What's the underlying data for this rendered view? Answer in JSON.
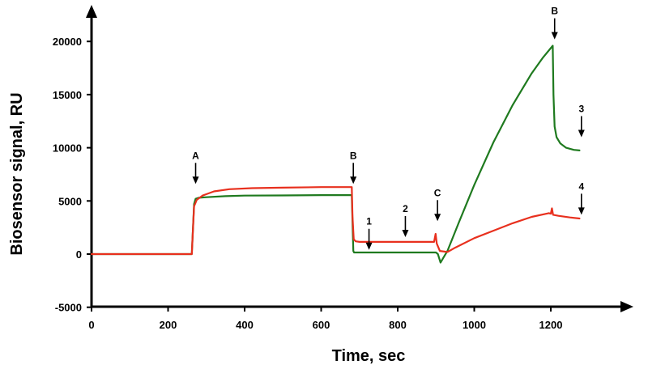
{
  "chart_data": {
    "type": "line",
    "title": "",
    "xlabel": "Time, sec",
    "ylabel": "Biosensor signal, RU",
    "xlim": [
      0,
      1400
    ],
    "ylim": [
      -5000,
      22500
    ],
    "x_ticks": [
      0,
      200,
      400,
      600,
      800,
      1000,
      1200
    ],
    "y_ticks": [
      -5000,
      0,
      5000,
      10000,
      15000,
      20000
    ],
    "grid": false,
    "series": [
      {
        "color": "#1f7a1f",
        "points": [
          [
            0,
            0
          ],
          [
            262,
            0
          ],
          [
            264,
            1500
          ],
          [
            268,
            4700
          ],
          [
            272,
            5200
          ],
          [
            280,
            5300
          ],
          [
            300,
            5350
          ],
          [
            350,
            5450
          ],
          [
            400,
            5500
          ],
          [
            500,
            5520
          ],
          [
            600,
            5550
          ],
          [
            680,
            5550
          ],
          [
            682,
            3000
          ],
          [
            684,
            300
          ],
          [
            686,
            150
          ],
          [
            700,
            150
          ],
          [
            800,
            150
          ],
          [
            900,
            150
          ],
          [
            905,
            0
          ],
          [
            912,
            -800
          ],
          [
            920,
            -300
          ],
          [
            930,
            300
          ],
          [
            960,
            3000
          ],
          [
            1000,
            6500
          ],
          [
            1050,
            10500
          ],
          [
            1100,
            14000
          ],
          [
            1150,
            17000
          ],
          [
            1180,
            18500
          ],
          [
            1205,
            19600
          ],
          [
            1207,
            15000
          ],
          [
            1210,
            12000
          ],
          [
            1215,
            11000
          ],
          [
            1225,
            10400
          ],
          [
            1240,
            10000
          ],
          [
            1260,
            9800
          ],
          [
            1275,
            9750
          ]
        ]
      },
      {
        "color": "#e8301e",
        "points": [
          [
            0,
            0
          ],
          [
            262,
            0
          ],
          [
            264,
            1500
          ],
          [
            268,
            4500
          ],
          [
            275,
            5100
          ],
          [
            290,
            5500
          ],
          [
            320,
            5900
          ],
          [
            360,
            6100
          ],
          [
            420,
            6200
          ],
          [
            500,
            6250
          ],
          [
            600,
            6300
          ],
          [
            680,
            6300
          ],
          [
            682,
            3500
          ],
          [
            685,
            1400
          ],
          [
            690,
            1200
          ],
          [
            700,
            1150
          ],
          [
            800,
            1150
          ],
          [
            895,
            1150
          ],
          [
            899,
            1900
          ],
          [
            902,
            1000
          ],
          [
            910,
            300
          ],
          [
            930,
            200
          ],
          [
            950,
            600
          ],
          [
            1000,
            1500
          ],
          [
            1050,
            2200
          ],
          [
            1100,
            2900
          ],
          [
            1150,
            3500
          ],
          [
            1195,
            3850
          ],
          [
            1200,
            3800
          ],
          [
            1203,
            4300
          ],
          [
            1206,
            3700
          ],
          [
            1220,
            3600
          ],
          [
            1250,
            3450
          ],
          [
            1275,
            3350
          ]
        ]
      }
    ],
    "annotations": [
      {
        "label": "A",
        "x": 272,
        "y": 6600
      },
      {
        "label": "B",
        "x": 684,
        "y": 6600
      },
      {
        "label": "1",
        "x": 725,
        "y": 400
      },
      {
        "label": "2",
        "x": 820,
        "y": 1600
      },
      {
        "label": "C",
        "x": 904,
        "y": 3100
      },
      {
        "label": "B",
        "x": 1210,
        "y": 20200
      },
      {
        "label": "3",
        "x": 1280,
        "y": 11000
      },
      {
        "label": "4",
        "x": 1280,
        "y": 3700
      }
    ]
  }
}
